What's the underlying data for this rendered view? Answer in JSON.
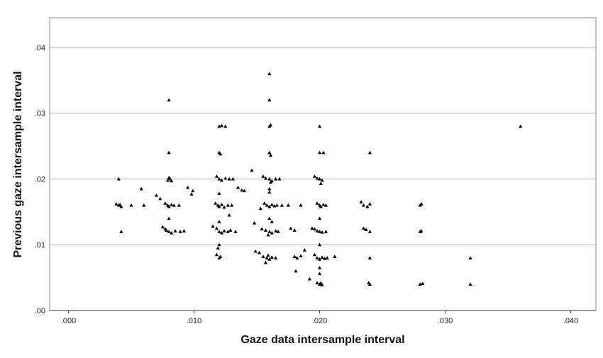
{
  "chart_data": {
    "type": "scatter",
    "xlabel": "Gaze data intersample interval",
    "ylabel": "Previous gaze intersample interval",
    "xlim": [
      -0.0015,
      0.042
    ],
    "ylim": [
      0.0,
      0.0445
    ],
    "x_ticks": [
      0.0,
      0.01,
      0.02,
      0.03,
      0.04
    ],
    "x_tick_labels": [
      ".000",
      ".010",
      ".020",
      ".030",
      ".040"
    ],
    "y_ticks": [
      0.0,
      0.01,
      0.02,
      0.03,
      0.04
    ],
    "y_tick_labels": [
      ".00",
      ".01",
      ".02",
      ".03",
      ".04"
    ],
    "grid": "horizontal",
    "marker": "triangle",
    "points": [
      [
        0.004,
        0.016
      ],
      [
        0.0038,
        0.0162
      ],
      [
        0.0042,
        0.0158
      ],
      [
        0.0041,
        0.0161
      ],
      [
        0.004,
        0.02
      ],
      [
        0.0042,
        0.012
      ],
      [
        0.005,
        0.016
      ],
      [
        0.0058,
        0.0185
      ],
      [
        0.006,
        0.016
      ],
      [
        0.007,
        0.0175
      ],
      [
        0.0073,
        0.017
      ],
      [
        0.0075,
        0.0127
      ],
      [
        0.0077,
        0.0124
      ],
      [
        0.0078,
        0.0122
      ],
      [
        0.008,
        0.012
      ],
      [
        0.0082,
        0.0118
      ],
      [
        0.0085,
        0.0121
      ],
      [
        0.0089,
        0.012
      ],
      [
        0.0077,
        0.0163
      ],
      [
        0.0079,
        0.016
      ],
      [
        0.008,
        0.0158
      ],
      [
        0.0082,
        0.0161
      ],
      [
        0.0084,
        0.016
      ],
      [
        0.0079,
        0.0198
      ],
      [
        0.008,
        0.0202
      ],
      [
        0.0081,
        0.02
      ],
      [
        0.0082,
        0.0197
      ],
      [
        0.008,
        0.024
      ],
      [
        0.008,
        0.032
      ],
      [
        0.008,
        0.014
      ],
      [
        0.0088,
        0.016
      ],
      [
        0.0092,
        0.0121
      ],
      [
        0.0095,
        0.0187
      ],
      [
        0.0099,
        0.0182
      ],
      [
        0.0098,
        0.0177
      ],
      [
        0.0118,
        0.0204
      ],
      [
        0.012,
        0.02
      ],
      [
        0.0122,
        0.0198
      ],
      [
        0.0125,
        0.0201
      ],
      [
        0.0128,
        0.02
      ],
      [
        0.0131,
        0.02
      ],
      [
        0.0117,
        0.0163
      ],
      [
        0.0119,
        0.016
      ],
      [
        0.012,
        0.0158
      ],
      [
        0.0122,
        0.0161
      ],
      [
        0.0124,
        0.0157
      ],
      [
        0.0127,
        0.016
      ],
      [
        0.013,
        0.016
      ],
      [
        0.0115,
        0.0128
      ],
      [
        0.0118,
        0.0125
      ],
      [
        0.012,
        0.012
      ],
      [
        0.0122,
        0.0118
      ],
      [
        0.0124,
        0.0121
      ],
      [
        0.0127,
        0.012
      ],
      [
        0.0129,
        0.0122
      ],
      [
        0.0133,
        0.012
      ],
      [
        0.0118,
        0.0085
      ],
      [
        0.012,
        0.008
      ],
      [
        0.0121,
        0.0082
      ],
      [
        0.0119,
        0.0095
      ],
      [
        0.012,
        0.01
      ],
      [
        0.012,
        0.024
      ],
      [
        0.0121,
        0.0238
      ],
      [
        0.012,
        0.028
      ],
      [
        0.0122,
        0.0281
      ],
      [
        0.0125,
        0.028
      ],
      [
        0.012,
        0.0178
      ],
      [
        0.012,
        0.0135
      ],
      [
        0.0128,
        0.0145
      ],
      [
        0.0135,
        0.0187
      ],
      [
        0.0138,
        0.0183
      ],
      [
        0.014,
        0.0182
      ],
      [
        0.0146,
        0.0213
      ],
      [
        0.0148,
        0.0133
      ],
      [
        0.0153,
        0.0155
      ],
      [
        0.0154,
        0.0124
      ],
      [
        0.0157,
        0.0122
      ],
      [
        0.016,
        0.012
      ],
      [
        0.0162,
        0.0118
      ],
      [
        0.0165,
        0.0121
      ],
      [
        0.0167,
        0.012
      ],
      [
        0.0159,
        0.0115
      ],
      [
        0.0155,
        0.0204
      ],
      [
        0.0157,
        0.0201
      ],
      [
        0.016,
        0.02
      ],
      [
        0.0162,
        0.0197
      ],
      [
        0.0165,
        0.02
      ],
      [
        0.0168,
        0.02
      ],
      [
        0.0161,
        0.0195
      ],
      [
        0.0156,
        0.0163
      ],
      [
        0.0158,
        0.016
      ],
      [
        0.016,
        0.0158
      ],
      [
        0.0162,
        0.0161
      ],
      [
        0.0164,
        0.0159
      ],
      [
        0.0166,
        0.016
      ],
      [
        0.0155,
        0.0082
      ],
      [
        0.0158,
        0.008
      ],
      [
        0.016,
        0.0078
      ],
      [
        0.0162,
        0.0081
      ],
      [
        0.0165,
        0.008
      ],
      [
        0.0157,
        0.0073
      ],
      [
        0.0159,
        0.0084
      ],
      [
        0.016,
        0.024
      ],
      [
        0.0161,
        0.0236
      ],
      [
        0.016,
        0.028
      ],
      [
        0.0161,
        0.0282
      ],
      [
        0.016,
        0.032
      ],
      [
        0.016,
        0.036
      ],
      [
        0.016,
        0.018
      ],
      [
        0.016,
        0.0185
      ],
      [
        0.016,
        0.014
      ],
      [
        0.0162,
        0.0135
      ],
      [
        0.0149,
        0.009
      ],
      [
        0.0152,
        0.0088
      ],
      [
        0.017,
        0.016
      ],
      [
        0.0175,
        0.016
      ],
      [
        0.0177,
        0.0125
      ],
      [
        0.018,
        0.0122
      ],
      [
        0.0185,
        0.016
      ],
      [
        0.018,
        0.0082
      ],
      [
        0.0182,
        0.008
      ],
      [
        0.0185,
        0.0083
      ],
      [
        0.0181,
        0.006
      ],
      [
        0.0188,
        0.0092
      ],
      [
        0.0192,
        0.0048
      ],
      [
        0.0194,
        0.0125
      ],
      [
        0.0196,
        0.0204
      ],
      [
        0.0198,
        0.0201
      ],
      [
        0.02,
        0.02
      ],
      [
        0.0202,
        0.0198
      ],
      [
        0.0201,
        0.0193
      ],
      [
        0.0198,
        0.0163
      ],
      [
        0.02,
        0.016
      ],
      [
        0.0201,
        0.0158
      ],
      [
        0.0203,
        0.0161
      ],
      [
        0.0205,
        0.016
      ],
      [
        0.0196,
        0.0124
      ],
      [
        0.0198,
        0.0121
      ],
      [
        0.02,
        0.012
      ],
      [
        0.0202,
        0.0119
      ],
      [
        0.0205,
        0.012
      ],
      [
        0.0196,
        0.0085
      ],
      [
        0.0198,
        0.008
      ],
      [
        0.02,
        0.0078
      ],
      [
        0.0202,
        0.0081
      ],
      [
        0.0204,
        0.0079
      ],
      [
        0.0206,
        0.008
      ],
      [
        0.02,
        0.0056
      ],
      [
        0.02,
        0.0065
      ],
      [
        0.02,
        0.01
      ],
      [
        0.02,
        0.014
      ],
      [
        0.0198,
        0.0042
      ],
      [
        0.02,
        0.004
      ],
      [
        0.0202,
        0.0039
      ],
      [
        0.0201,
        0.0042
      ],
      [
        0.02,
        0.024
      ],
      [
        0.0203,
        0.024
      ],
      [
        0.02,
        0.028
      ],
      [
        0.0212,
        0.0082
      ],
      [
        0.0233,
        0.0165
      ],
      [
        0.0235,
        0.016
      ],
      [
        0.0238,
        0.0158
      ],
      [
        0.024,
        0.0162
      ],
      [
        0.0235,
        0.0125
      ],
      [
        0.0237,
        0.0123
      ],
      [
        0.024,
        0.012
      ],
      [
        0.024,
        0.008
      ],
      [
        0.024,
        0.004
      ],
      [
        0.0239,
        0.0042
      ],
      [
        0.024,
        0.024
      ],
      [
        0.028,
        0.016
      ],
      [
        0.0281,
        0.0162
      ],
      [
        0.028,
        0.012
      ],
      [
        0.0281,
        0.0121
      ],
      [
        0.028,
        0.004
      ],
      [
        0.0282,
        0.0041
      ],
      [
        0.032,
        0.008
      ],
      [
        0.032,
        0.004
      ],
      [
        0.036,
        0.028
      ]
    ]
  }
}
